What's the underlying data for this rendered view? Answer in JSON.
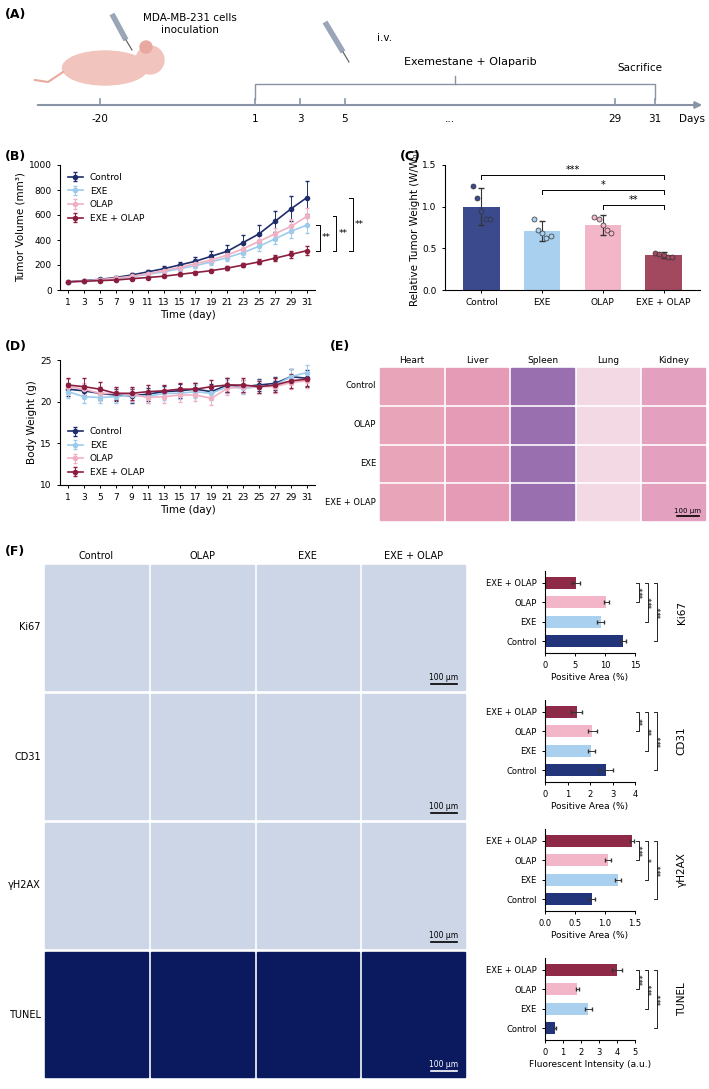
{
  "chart_data": [
    {
      "type": "line",
      "panel": "(B)",
      "x_label": "Time (day)",
      "y_label": "Tumor Volume (mm³)",
      "x": [
        1,
        3,
        5,
        7,
        9,
        11,
        13,
        15,
        17,
        19,
        21,
        23,
        25,
        27,
        29,
        31
      ],
      "xlim": [
        0,
        32
      ],
      "xticks": [
        1,
        3,
        5,
        7,
        9,
        11,
        13,
        15,
        17,
        19,
        21,
        23,
        25,
        27,
        29,
        31
      ],
      "ylim": [
        0,
        1000
      ],
      "yticks": [
        0,
        200,
        400,
        600,
        800,
        1000
      ],
      "legend": "upper left",
      "series": [
        {
          "name": "Control",
          "color": "#1f2d6b",
          "marker": "circle",
          "line_style": "solid",
          "values": [
            65,
            75,
            85,
            100,
            120,
            145,
            170,
            200,
            230,
            270,
            310,
            380,
            450,
            550,
            650,
            740
          ],
          "errors": [
            5,
            6,
            8,
            10,
            14,
            18,
            22,
            28,
            35,
            42,
            50,
            60,
            70,
            85,
            100,
            135
          ]
        },
        {
          "name": "EXE",
          "color": "#9ccbec",
          "marker": "circle",
          "line_style": "solid",
          "values": [
            65,
            70,
            80,
            90,
            105,
            125,
            145,
            170,
            195,
            225,
            260,
            300,
            350,
            410,
            470,
            520
          ],
          "errors": [
            4,
            5,
            6,
            8,
            10,
            12,
            15,
            18,
            22,
            26,
            30,
            35,
            40,
            45,
            50,
            60
          ]
        },
        {
          "name": "OLAP",
          "color": "#f0b0c4",
          "marker": "circle",
          "line_style": "solid",
          "values": [
            65,
            72,
            82,
            95,
            110,
            130,
            155,
            180,
            210,
            240,
            280,
            330,
            390,
            450,
            510,
            590
          ],
          "errors": [
            4,
            5,
            7,
            9,
            11,
            14,
            17,
            20,
            24,
            28,
            32,
            38,
            44,
            50,
            55,
            65
          ]
        },
        {
          "name": "EXE + OLAP",
          "color": "#8b1e3f",
          "marker": "circle",
          "line_style": "solid",
          "values": [
            65,
            70,
            75,
            80,
            90,
            100,
            110,
            125,
            140,
            155,
            175,
            200,
            225,
            255,
            285,
            315
          ],
          "errors": [
            4,
            4,
            5,
            6,
            7,
            8,
            9,
            10,
            12,
            14,
            16,
            18,
            20,
            24,
            28,
            35
          ]
        }
      ],
      "annotations": [
        {
          "text": "**",
          "between": [
            "EXE",
            "EXE + OLAP"
          ]
        },
        {
          "text": "**",
          "between": [
            "OLAP",
            "EXE + OLAP"
          ]
        },
        {
          "text": "**",
          "between": [
            "Control",
            "EXE + OLAP"
          ]
        }
      ]
    },
    {
      "type": "bar",
      "panel": "(C)",
      "y_label": "Relative Tumor Weight (W/W₀)",
      "categories": [
        "Control",
        "EXE",
        "OLAP",
        "EXE + OLAP"
      ],
      "values": [
        1.0,
        0.71,
        0.78,
        0.42
      ],
      "errors": [
        0.22,
        0.12,
        0.12,
        0.04
      ],
      "points": [
        [
          1.25,
          1.1,
          0.95,
          0.85,
          0.85
        ],
        [
          0.85,
          0.72,
          0.68,
          0.62,
          0.65
        ],
        [
          0.88,
          0.85,
          0.78,
          0.72,
          0.68
        ],
        [
          0.45,
          0.43,
          0.42,
          0.4,
          0.4
        ]
      ],
      "colors": [
        "#3b4a8c",
        "#a9d0ee",
        "#f3b6c9",
        "#a2485f"
      ],
      "ylim": [
        0,
        1.5
      ],
      "yticks": [
        {
          "value": 0,
          "label": "0.0"
        },
        0.5,
        {
          "value": 1,
          "label": "1.0"
        },
        1.5
      ],
      "annotations": [
        {
          "text": "**",
          "between": [
            "OLAP",
            "EXE + OLAP"
          ]
        },
        {
          "text": "*",
          "between": [
            "EXE",
            "EXE + OLAP"
          ]
        },
        {
          "text": "***",
          "between": [
            "Control",
            "EXE + OLAP"
          ]
        }
      ]
    },
    {
      "type": "line",
      "panel": "(D)",
      "x_label": "Time (day)",
      "y_label": "Body Weight (g)",
      "x": [
        1,
        3,
        5,
        7,
        9,
        11,
        13,
        15,
        17,
        19,
        21,
        23,
        25,
        27,
        29,
        31
      ],
      "xlim": [
        0,
        32
      ],
      "xticks": [
        1,
        3,
        5,
        7,
        9,
        11,
        13,
        15,
        17,
        19,
        21,
        23,
        25,
        27,
        29,
        31
      ],
      "ylim": [
        10,
        25
      ],
      "yticks": [
        10,
        15,
        20,
        25
      ],
      "legend": "lower left",
      "series": [
        {
          "name": "Control",
          "color": "#1f2d6b",
          "marker": "circle",
          "line_style": "solid",
          "values": [
            21.5,
            21.3,
            21.0,
            20.8,
            20.7,
            20.9,
            21.2,
            21.3,
            21.5,
            21.2,
            22.0,
            21.8,
            22.0,
            22.2,
            23.0,
            22.8
          ],
          "errors": [
            0.8,
            0.7,
            0.8,
            0.7,
            0.8,
            0.8,
            0.7,
            0.8,
            0.8,
            0.9,
            0.8,
            0.8,
            0.7,
            0.8,
            0.9,
            1.0
          ]
        },
        {
          "name": "EXE",
          "color": "#9ccbec",
          "marker": "circle",
          "line_style": "solid",
          "values": [
            21.2,
            20.6,
            20.5,
            20.6,
            20.8,
            20.6,
            21.0,
            21.0,
            21.2,
            21.0,
            21.8,
            21.6,
            21.8,
            22.0,
            23.0,
            23.5
          ],
          "errors": [
            0.8,
            0.8,
            0.7,
            0.7,
            0.8,
            0.8,
            0.8,
            0.7,
            0.8,
            0.8,
            0.8,
            0.7,
            0.8,
            0.8,
            0.9,
            0.9
          ]
        },
        {
          "name": "OLAP",
          "color": "#f0b0c4",
          "marker": "circle",
          "line_style": "solid",
          "values": [
            21.8,
            21.5,
            21.0,
            21.0,
            20.9,
            20.5,
            20.6,
            20.8,
            20.8,
            20.4,
            21.6,
            21.8,
            21.8,
            21.8,
            22.3,
            22.5
          ],
          "errors": [
            0.9,
            0.8,
            0.8,
            0.7,
            0.8,
            0.7,
            0.8,
            0.8,
            0.7,
            0.8,
            0.8,
            0.8,
            0.7,
            0.8,
            0.8,
            0.8
          ]
        },
        {
          "name": "EXE + OLAP",
          "color": "#8b1e3f",
          "marker": "circle",
          "line_style": "solid",
          "values": [
            22.0,
            21.8,
            21.5,
            21.0,
            21.0,
            21.2,
            21.3,
            21.5,
            21.5,
            21.8,
            22.0,
            22.0,
            21.8,
            22.0,
            22.5,
            22.7
          ],
          "errors": [
            0.8,
            1.0,
            0.9,
            0.8,
            0.8,
            0.8,
            0.7,
            0.8,
            0.8,
            0.8,
            0.8,
            0.8,
            0.7,
            0.8,
            0.8,
            0.8
          ]
        }
      ]
    },
    {
      "type": "bar",
      "orientation": "horizontal",
      "x_label": "Positive Area (%)",
      "y_label": "Ki67",
      "categories": [
        "Control",
        "EXE",
        "OLAP",
        "EXE + OLAP"
      ],
      "values": [
        13.0,
        9.3,
        10.2,
        5.2
      ],
      "errors": [
        0.5,
        0.6,
        0.4,
        0.7
      ],
      "colors": [
        "#23357a",
        "#a9d0ee",
        "#f3b6c9",
        "#8e2a47"
      ],
      "xlim": [
        0,
        15
      ],
      "xticks": [
        0,
        5,
        10,
        15
      ],
      "annotations": [
        {
          "text": "***",
          "between": [
            "OLAP",
            "EXE + OLAP"
          ]
        },
        {
          "text": "***",
          "between": [
            "EXE",
            "EXE + OLAP"
          ]
        },
        {
          "text": "***",
          "between": [
            "Control",
            "EXE + OLAP"
          ]
        }
      ]
    },
    {
      "type": "bar",
      "orientation": "horizontal",
      "x_label": "Positive Area (%)",
      "y_label": "CD31",
      "categories": [
        "Control",
        "EXE",
        "OLAP",
        "EXE + OLAP"
      ],
      "values": [
        2.7,
        2.05,
        2.1,
        1.4
      ],
      "errors": [
        0.3,
        0.15,
        0.2,
        0.25
      ],
      "colors": [
        "#23357a",
        "#a9d0ee",
        "#f3b6c9",
        "#8e2a47"
      ],
      "xlim": [
        0,
        4
      ],
      "xticks": [
        0,
        1,
        2,
        3,
        4
      ],
      "annotations": [
        {
          "text": "**",
          "between": [
            "OLAP",
            "EXE + OLAP"
          ]
        },
        {
          "text": "**",
          "between": [
            "EXE",
            "EXE + OLAP"
          ]
        },
        {
          "text": "***",
          "between": [
            "Control",
            "EXE + OLAP"
          ]
        }
      ]
    },
    {
      "type": "bar",
      "orientation": "horizontal",
      "x_label": "Positive Area (%)",
      "y_label": "γH2AX",
      "categories": [
        "Control",
        "EXE",
        "OLAP",
        "EXE + OLAP"
      ],
      "values": [
        0.78,
        1.22,
        1.05,
        1.45
      ],
      "errors": [
        0.05,
        0.05,
        0.05,
        0.03
      ],
      "colors": [
        "#23357a",
        "#a9d0ee",
        "#f3b6c9",
        "#8e2a47"
      ],
      "xlim": [
        0,
        1.5
      ],
      "xticks": [
        {
          "value": 0,
          "label": "0.0"
        },
        0.5,
        {
          "value": 1,
          "label": "1.0"
        },
        1.5
      ],
      "annotations": [
        {
          "text": "***",
          "between": [
            "OLAP",
            "EXE + OLAP"
          ]
        },
        {
          "text": "*",
          "between": [
            "EXE",
            "EXE + OLAP"
          ]
        },
        {
          "text": "***",
          "between": [
            "Control",
            "EXE + OLAP"
          ]
        }
      ]
    },
    {
      "type": "bar",
      "orientation": "horizontal",
      "x_label": "Fluorescent Intensity (a.u.)",
      "y_label": "TUNEL",
      "categories": [
        "Control",
        "EXE",
        "OLAP",
        "EXE + OLAP"
      ],
      "values": [
        0.55,
        2.4,
        1.8,
        4.0
      ],
      "errors": [
        0.05,
        0.2,
        0.1,
        0.3
      ],
      "colors": [
        "#23357a",
        "#a9d0ee",
        "#f3b6c9",
        "#8e2a47"
      ],
      "xlim": [
        0,
        5
      ],
      "xticks": [
        0,
        1,
        2,
        3,
        4,
        5
      ],
      "annotations": [
        {
          "text": "***",
          "between": [
            "OLAP",
            "EXE + OLAP"
          ]
        },
        {
          "text": "***",
          "between": [
            "EXE",
            "EXE + OLAP"
          ]
        },
        {
          "text": "***",
          "between": [
            "Control",
            "EXE + OLAP"
          ]
        }
      ]
    }
  ],
  "panel_A": {
    "panel": "(A)",
    "inoculation_label": [
      "MDA-MB-231 cells",
      "inoculation"
    ],
    "route": "i.v.",
    "treatment": "Exemestane + Olaparib",
    "end_label": "Sacrifice",
    "timeline_labels": [
      "-20",
      "1",
      "3",
      "5",
      "...",
      "29",
      "31"
    ],
    "timeline_axis_label": "Days"
  },
  "panel_E": {
    "panel": "(E)",
    "columns": [
      "Heart",
      "Liver",
      "Spleen",
      "Lung",
      "Kidney"
    ],
    "rows": [
      "Control",
      "OLAP",
      "EXE",
      "EXE + OLAP"
    ],
    "scale_bar": "100 µm"
  },
  "panel_F_images": {
    "panel": "(F)",
    "columns": [
      "Control",
      "OLAP",
      "EXE",
      "EXE + OLAP"
    ],
    "rows": [
      "Ki67",
      "CD31",
      "γH2AX",
      "TUNEL"
    ],
    "scale_bar": "100 µm"
  }
}
